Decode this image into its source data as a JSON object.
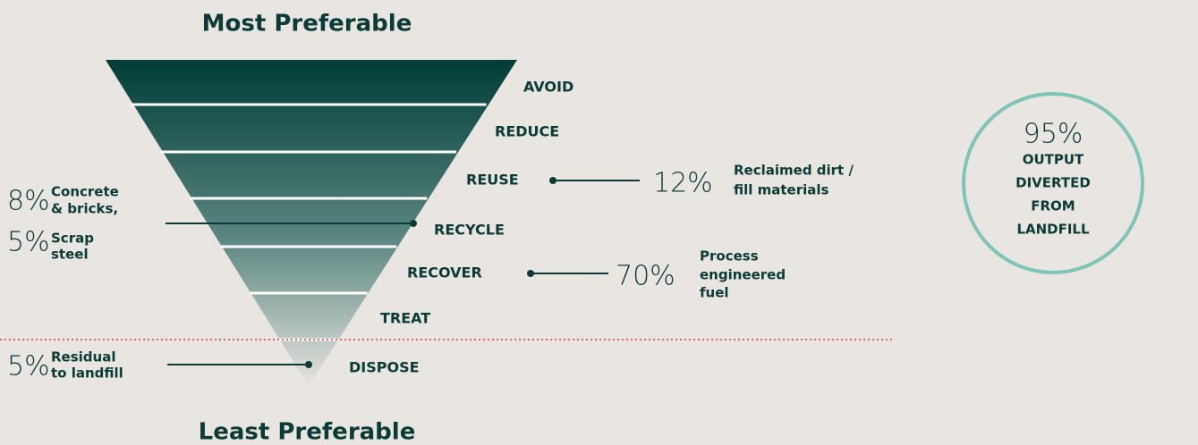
{
  "header": {
    "top_label": "Most Preferable",
    "bottom_label": "Least Preferable"
  },
  "levels": [
    "AVOID",
    "REDUCE",
    "REUSE",
    "RECYCLE",
    "RECOVER",
    "TREAT",
    "DISPOSE"
  ],
  "callouts": {
    "reuse": {
      "figure": "12%",
      "lines": [
        "Reclaimed dirt /",
        "fill materials"
      ]
    },
    "recycle": [
      {
        "figure": "8%",
        "lines": [
          "Concrete",
          "& bricks,"
        ]
      },
      {
        "figure": "5%",
        "lines": [
          "Scrap",
          "steel"
        ]
      }
    ],
    "recover": {
      "figure": "70%",
      "lines": [
        "Process",
        "engineered",
        "fuel"
      ]
    },
    "dispose": {
      "figure": "5%",
      "lines": [
        "Residual",
        "to landfill"
      ]
    }
  },
  "summary": {
    "figure": "95%",
    "lines": [
      "OUTPUT",
      "DIVERTED",
      "FROM",
      "LANDFILL"
    ]
  }
}
